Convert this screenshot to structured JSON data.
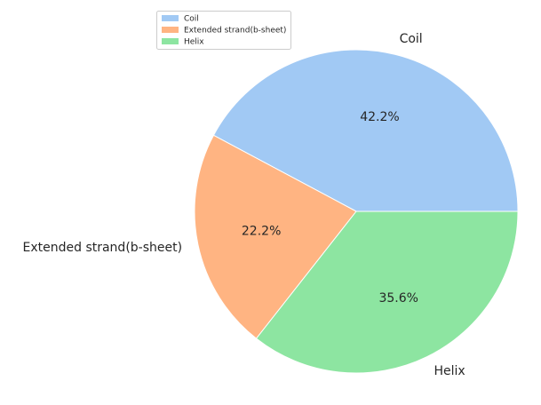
{
  "chart_data": {
    "type": "pie",
    "categories": [
      "Coil",
      "Extended strand(b-sheet)",
      "Helix"
    ],
    "values": [
      42.2,
      22.2,
      35.6
    ],
    "value_labels": [
      "42.2%",
      "22.2%",
      "35.6%"
    ],
    "colors": [
      "#a1c9f4",
      "#ffb482",
      "#8de5a1"
    ],
    "start_angle_deg": 0,
    "direction": "counterclockwise",
    "legend": {
      "placement": "top-left",
      "entries": [
        "Coil",
        "Extended strand(b-sheet)",
        "Helix"
      ]
    }
  }
}
